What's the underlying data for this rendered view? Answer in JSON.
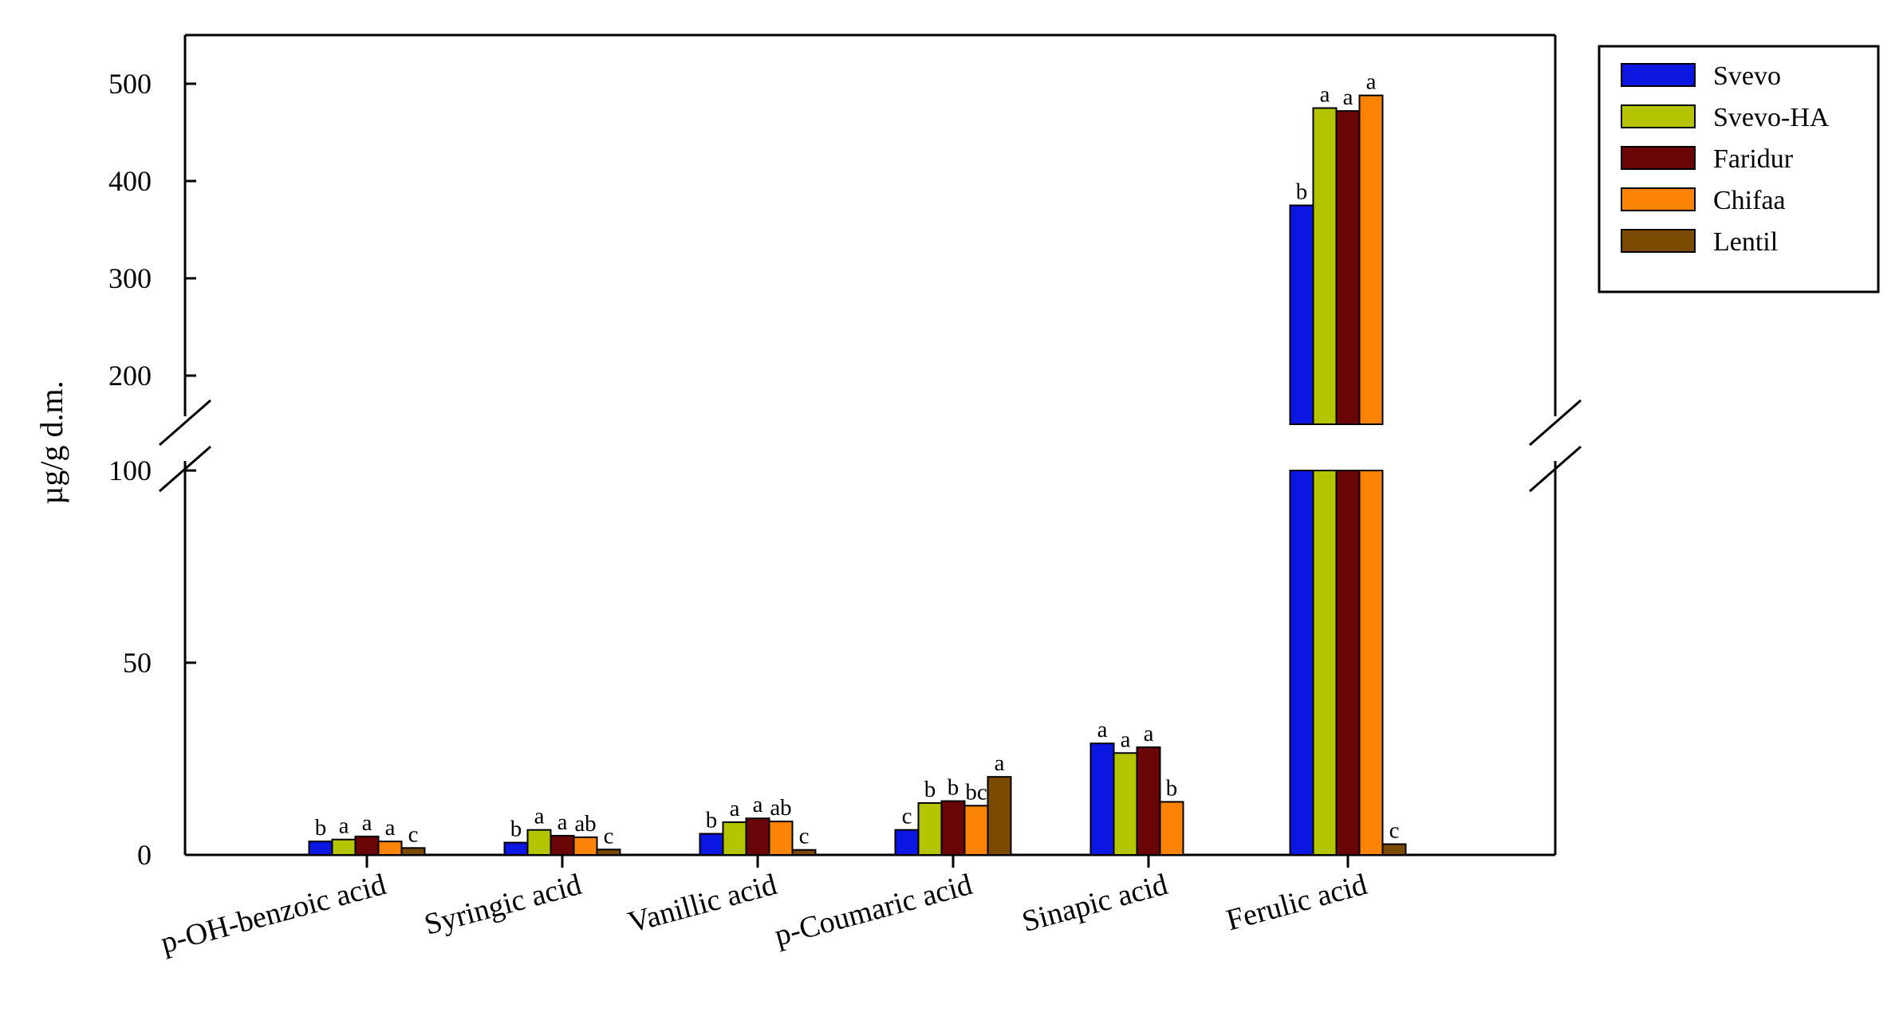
{
  "chart_data": {
    "type": "bar",
    "ylabel": "µg/g d.m.",
    "xlabel": "",
    "title": "",
    "categories": [
      "p-OH-benzoic acid",
      "Syringic  acid",
      "Vanillic acid",
      "p-Coumaric  acid",
      "Sinapic acid",
      "Ferulic acid"
    ],
    "series": [
      {
        "name": "Svevo",
        "color": "#0b16e0",
        "values": [
          3.5,
          3.2,
          5.5,
          6.5,
          29,
          375
        ],
        "labels": [
          "b",
          "b",
          "b",
          "c",
          "a",
          "b"
        ]
      },
      {
        "name": "Svevo-HA",
        "color": "#b5c400",
        "values": [
          4,
          6.5,
          8.5,
          13.5,
          26.5,
          475
        ],
        "labels": [
          "a",
          "a",
          "a",
          "b",
          "a",
          "a"
        ]
      },
      {
        "name": "Faridur",
        "color": "#6a0507",
        "values": [
          4.8,
          5,
          9.5,
          14,
          28,
          472
        ],
        "labels": [
          "a",
          "a",
          "a",
          "b",
          "a",
          "a"
        ]
      },
      {
        "name": "Chifaa",
        "color": "#fb8305",
        "values": [
          3.5,
          4.6,
          8.7,
          12.8,
          13.8,
          488
        ],
        "labels": [
          "a",
          "ab",
          "ab",
          "bc",
          "b",
          "a"
        ]
      },
      {
        "name": "Lentil",
        "color": "#7a4a00",
        "values": [
          1.8,
          1.4,
          1.3,
          20.3,
          null,
          2.8
        ],
        "labels": [
          "c",
          "c",
          "c",
          "a",
          null,
          "c"
        ]
      }
    ],
    "y_axis": {
      "lower_segment": {
        "range": [
          0,
          100
        ],
        "ticks": [
          0,
          50,
          100
        ]
      },
      "upper_segment": {
        "range": [
          150,
          550
        ],
        "ticks": [
          200,
          300,
          400,
          500
        ]
      },
      "break_between": [
        100,
        150
      ]
    },
    "legend_position": "top-right",
    "grid": false
  }
}
